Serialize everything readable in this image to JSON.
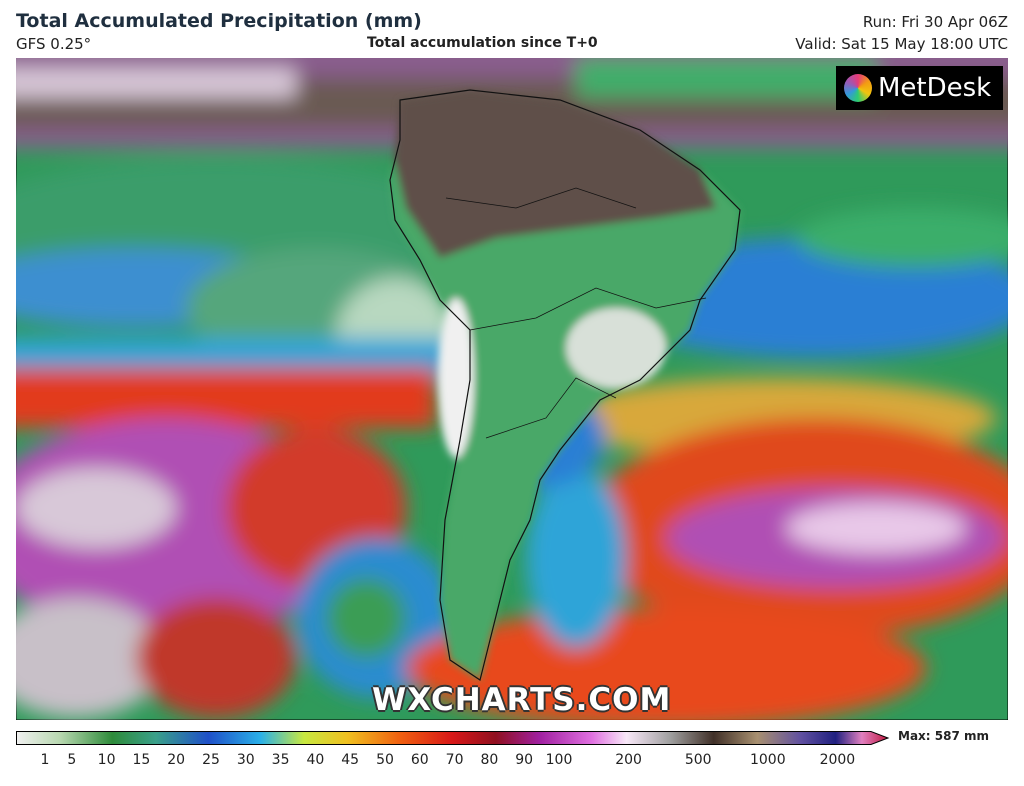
{
  "header": {
    "title": "Total Accumulated Precipitation (mm)",
    "model": "GFS 0.25°",
    "subtitle": "Total accumulation since T+0",
    "run": "Run: Fri 30 Apr 06Z",
    "valid": "Valid: Sat 15 May 18:00 UTC"
  },
  "logo": "MetDesk",
  "watermark": "WXCHARTS.COM",
  "legend": {
    "ticks": [
      1,
      5,
      10,
      15,
      20,
      25,
      30,
      35,
      40,
      45,
      50,
      60,
      70,
      80,
      90,
      100,
      200,
      500,
      1000,
      2000
    ],
    "max_label": "Max: 587 mm"
  }
}
